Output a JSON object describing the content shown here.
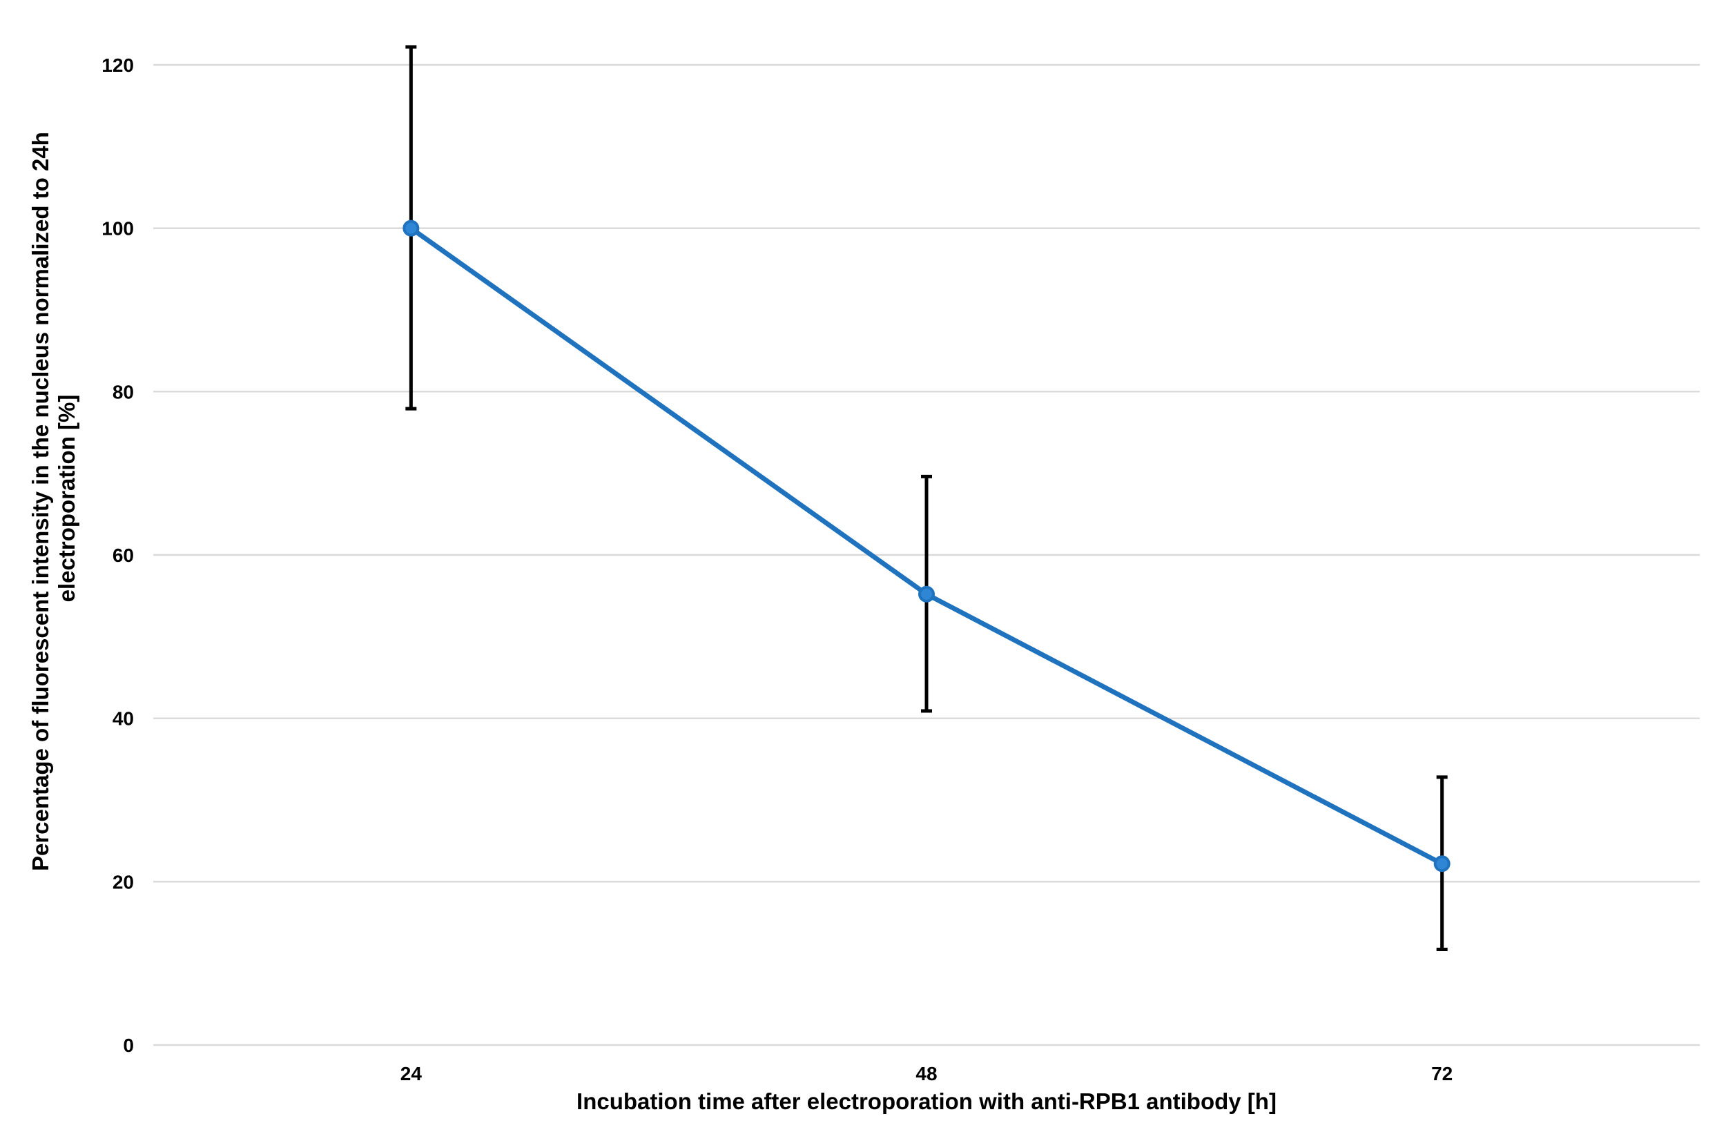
{
  "chart_data": {
    "type": "line",
    "title": "",
    "xlabel": "Incubation time after electroporation with anti-RPB1 antibody [h]",
    "ylabel_lines": [
      "Percentage of fluorescent intensity in the nucleus normalized to 24h",
      "electroporation [%]"
    ],
    "categories": [
      "24",
      "48",
      "72"
    ],
    "ylim": [
      0,
      120
    ],
    "yticks": [
      0,
      20,
      40,
      60,
      80,
      100,
      120
    ],
    "grid": true,
    "legend": "none",
    "series": [
      {
        "values": [
          100,
          55.2,
          22.2
        ],
        "error_low": [
          77.9,
          40.9,
          11.7
        ],
        "error_high": [
          122.2,
          69.6,
          32.8
        ],
        "color": "#1f72bd",
        "marker_color": "#2e86d4"
      }
    ]
  }
}
